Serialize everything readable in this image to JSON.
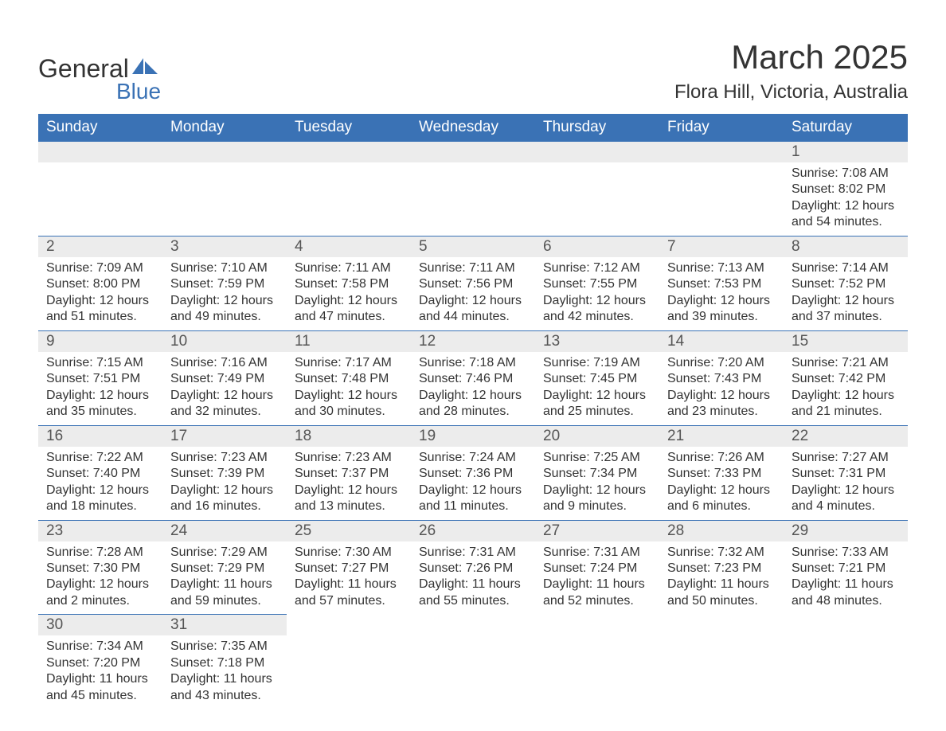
{
  "logo": {
    "general": "General",
    "blue": "Blue"
  },
  "title": "March 2025",
  "location": "Flora Hill, Victoria, Australia",
  "colors": {
    "header_bg": "#3a72b5",
    "header_text": "#ffffff",
    "daynum_bg": "#ececec",
    "border": "#3a72b5",
    "text": "#333333",
    "logo_blue": "#3a72b5"
  },
  "day_headers": [
    "Sunday",
    "Monday",
    "Tuesday",
    "Wednesday",
    "Thursday",
    "Friday",
    "Saturday"
  ],
  "weeks": [
    [
      {
        "n": "",
        "lines": [
          "",
          "",
          "",
          ""
        ]
      },
      {
        "n": "",
        "lines": [
          "",
          "",
          "",
          ""
        ]
      },
      {
        "n": "",
        "lines": [
          "",
          "",
          "",
          ""
        ]
      },
      {
        "n": "",
        "lines": [
          "",
          "",
          "",
          ""
        ]
      },
      {
        "n": "",
        "lines": [
          "",
          "",
          "",
          ""
        ]
      },
      {
        "n": "",
        "lines": [
          "",
          "",
          "",
          ""
        ]
      },
      {
        "n": "1",
        "lines": [
          "Sunrise: 7:08 AM",
          "Sunset: 8:02 PM",
          "Daylight: 12 hours",
          "and 54 minutes."
        ]
      }
    ],
    [
      {
        "n": "2",
        "lines": [
          "Sunrise: 7:09 AM",
          "Sunset: 8:00 PM",
          "Daylight: 12 hours",
          "and 51 minutes."
        ]
      },
      {
        "n": "3",
        "lines": [
          "Sunrise: 7:10 AM",
          "Sunset: 7:59 PM",
          "Daylight: 12 hours",
          "and 49 minutes."
        ]
      },
      {
        "n": "4",
        "lines": [
          "Sunrise: 7:11 AM",
          "Sunset: 7:58 PM",
          "Daylight: 12 hours",
          "and 47 minutes."
        ]
      },
      {
        "n": "5",
        "lines": [
          "Sunrise: 7:11 AM",
          "Sunset: 7:56 PM",
          "Daylight: 12 hours",
          "and 44 minutes."
        ]
      },
      {
        "n": "6",
        "lines": [
          "Sunrise: 7:12 AM",
          "Sunset: 7:55 PM",
          "Daylight: 12 hours",
          "and 42 minutes."
        ]
      },
      {
        "n": "7",
        "lines": [
          "Sunrise: 7:13 AM",
          "Sunset: 7:53 PM",
          "Daylight: 12 hours",
          "and 39 minutes."
        ]
      },
      {
        "n": "8",
        "lines": [
          "Sunrise: 7:14 AM",
          "Sunset: 7:52 PM",
          "Daylight: 12 hours",
          "and 37 minutes."
        ]
      }
    ],
    [
      {
        "n": "9",
        "lines": [
          "Sunrise: 7:15 AM",
          "Sunset: 7:51 PM",
          "Daylight: 12 hours",
          "and 35 minutes."
        ]
      },
      {
        "n": "10",
        "lines": [
          "Sunrise: 7:16 AM",
          "Sunset: 7:49 PM",
          "Daylight: 12 hours",
          "and 32 minutes."
        ]
      },
      {
        "n": "11",
        "lines": [
          "Sunrise: 7:17 AM",
          "Sunset: 7:48 PM",
          "Daylight: 12 hours",
          "and 30 minutes."
        ]
      },
      {
        "n": "12",
        "lines": [
          "Sunrise: 7:18 AM",
          "Sunset: 7:46 PM",
          "Daylight: 12 hours",
          "and 28 minutes."
        ]
      },
      {
        "n": "13",
        "lines": [
          "Sunrise: 7:19 AM",
          "Sunset: 7:45 PM",
          "Daylight: 12 hours",
          "and 25 minutes."
        ]
      },
      {
        "n": "14",
        "lines": [
          "Sunrise: 7:20 AM",
          "Sunset: 7:43 PM",
          "Daylight: 12 hours",
          "and 23 minutes."
        ]
      },
      {
        "n": "15",
        "lines": [
          "Sunrise: 7:21 AM",
          "Sunset: 7:42 PM",
          "Daylight: 12 hours",
          "and 21 minutes."
        ]
      }
    ],
    [
      {
        "n": "16",
        "lines": [
          "Sunrise: 7:22 AM",
          "Sunset: 7:40 PM",
          "Daylight: 12 hours",
          "and 18 minutes."
        ]
      },
      {
        "n": "17",
        "lines": [
          "Sunrise: 7:23 AM",
          "Sunset: 7:39 PM",
          "Daylight: 12 hours",
          "and 16 minutes."
        ]
      },
      {
        "n": "18",
        "lines": [
          "Sunrise: 7:23 AM",
          "Sunset: 7:37 PM",
          "Daylight: 12 hours",
          "and 13 minutes."
        ]
      },
      {
        "n": "19",
        "lines": [
          "Sunrise: 7:24 AM",
          "Sunset: 7:36 PM",
          "Daylight: 12 hours",
          "and 11 minutes."
        ]
      },
      {
        "n": "20",
        "lines": [
          "Sunrise: 7:25 AM",
          "Sunset: 7:34 PM",
          "Daylight: 12 hours",
          "and 9 minutes."
        ]
      },
      {
        "n": "21",
        "lines": [
          "Sunrise: 7:26 AM",
          "Sunset: 7:33 PM",
          "Daylight: 12 hours",
          "and 6 minutes."
        ]
      },
      {
        "n": "22",
        "lines": [
          "Sunrise: 7:27 AM",
          "Sunset: 7:31 PM",
          "Daylight: 12 hours",
          "and 4 minutes."
        ]
      }
    ],
    [
      {
        "n": "23",
        "lines": [
          "Sunrise: 7:28 AM",
          "Sunset: 7:30 PM",
          "Daylight: 12 hours",
          "and 2 minutes."
        ]
      },
      {
        "n": "24",
        "lines": [
          "Sunrise: 7:29 AM",
          "Sunset: 7:29 PM",
          "Daylight: 11 hours",
          "and 59 minutes."
        ]
      },
      {
        "n": "25",
        "lines": [
          "Sunrise: 7:30 AM",
          "Sunset: 7:27 PM",
          "Daylight: 11 hours",
          "and 57 minutes."
        ]
      },
      {
        "n": "26",
        "lines": [
          "Sunrise: 7:31 AM",
          "Sunset: 7:26 PM",
          "Daylight: 11 hours",
          "and 55 minutes."
        ]
      },
      {
        "n": "27",
        "lines": [
          "Sunrise: 7:31 AM",
          "Sunset: 7:24 PM",
          "Daylight: 11 hours",
          "and 52 minutes."
        ]
      },
      {
        "n": "28",
        "lines": [
          "Sunrise: 7:32 AM",
          "Sunset: 7:23 PM",
          "Daylight: 11 hours",
          "and 50 minutes."
        ]
      },
      {
        "n": "29",
        "lines": [
          "Sunrise: 7:33 AM",
          "Sunset: 7:21 PM",
          "Daylight: 11 hours",
          "and 48 minutes."
        ]
      }
    ],
    [
      {
        "n": "30",
        "lines": [
          "Sunrise: 7:34 AM",
          "Sunset: 7:20 PM",
          "Daylight: 11 hours",
          "and 45 minutes."
        ]
      },
      {
        "n": "31",
        "lines": [
          "Sunrise: 7:35 AM",
          "Sunset: 7:18 PM",
          "Daylight: 11 hours",
          "and 43 minutes."
        ]
      },
      {
        "n": "",
        "lines": [
          "",
          "",
          "",
          ""
        ]
      },
      {
        "n": "",
        "lines": [
          "",
          "",
          "",
          ""
        ]
      },
      {
        "n": "",
        "lines": [
          "",
          "",
          "",
          ""
        ]
      },
      {
        "n": "",
        "lines": [
          "",
          "",
          "",
          ""
        ]
      },
      {
        "n": "",
        "lines": [
          "",
          "",
          "",
          ""
        ]
      }
    ]
  ]
}
